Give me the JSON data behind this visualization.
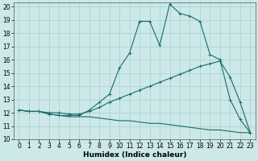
{
  "xlabel": "Humidex (Indice chaleur)",
  "xlim": [
    -0.5,
    23.5
  ],
  "ylim": [
    10,
    20.3
  ],
  "yticks": [
    10,
    11,
    12,
    13,
    14,
    15,
    16,
    17,
    18,
    19,
    20
  ],
  "xticks": [
    0,
    1,
    2,
    3,
    4,
    5,
    6,
    7,
    8,
    9,
    10,
    11,
    12,
    13,
    14,
    15,
    16,
    17,
    18,
    19,
    20,
    21,
    22,
    23
  ],
  "bg_color": "#cce8e8",
  "grid_color": "#aad0d0",
  "line_color": "#1a6b6b",
  "line1_x": [
    0,
    1,
    2,
    3,
    4,
    5,
    6,
    7,
    8,
    9,
    10,
    11,
    12,
    13,
    14,
    15,
    16,
    17,
    18,
    19,
    20,
    21,
    22,
    23
  ],
  "line1_y": [
    12.2,
    12.1,
    12.1,
    11.9,
    11.8,
    11.7,
    11.7,
    11.7,
    11.6,
    11.5,
    11.4,
    11.4,
    11.3,
    11.2,
    11.2,
    11.1,
    11.0,
    10.9,
    10.8,
    10.7,
    10.7,
    10.6,
    10.5,
    10.5
  ],
  "line2_x": [
    0,
    1,
    2,
    3,
    4,
    5,
    6,
    7,
    8,
    9,
    10,
    11,
    12,
    13,
    14,
    15,
    16,
    17,
    18,
    19,
    20,
    21,
    22,
    23
  ],
  "line2_y": [
    12.2,
    12.1,
    12.1,
    12.0,
    12.0,
    11.9,
    11.9,
    12.1,
    12.4,
    12.8,
    13.1,
    13.4,
    13.7,
    14.0,
    14.3,
    14.6,
    14.9,
    15.2,
    15.5,
    15.7,
    15.9,
    14.7,
    12.8,
    10.5
  ],
  "line3_x": [
    0,
    1,
    2,
    3,
    4,
    5,
    6,
    7,
    8,
    9,
    10,
    11,
    12,
    13,
    14,
    15,
    16,
    17,
    18,
    19,
    20,
    21,
    22,
    23
  ],
  "line3_y": [
    12.2,
    12.1,
    12.1,
    11.9,
    11.8,
    11.8,
    11.8,
    12.2,
    12.8,
    13.4,
    15.4,
    16.5,
    18.9,
    18.9,
    17.1,
    20.2,
    19.5,
    19.3,
    18.9,
    16.4,
    16.0,
    13.0,
    11.5,
    10.5
  ],
  "tick_fontsize": 5.5,
  "xlabel_fontsize": 6.5
}
